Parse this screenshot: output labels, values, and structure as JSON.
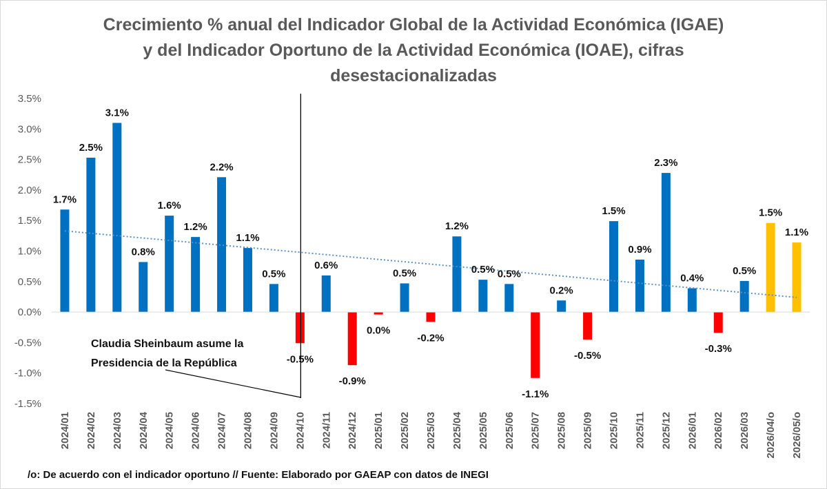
{
  "chart_data": {
    "type": "bar",
    "title_lines": [
      "Crecimiento % anual del Indicador Global de la Actividad Económica (IGAE)",
      "y del Indicador Oportuno de la Actividad Económica (IOAE), cifras",
      "desestacionalizadas"
    ],
    "categories": [
      "2024/01",
      "2024/02",
      "2024/03",
      "2024/04",
      "2024/05",
      "2024/06",
      "2024/07",
      "2024/08",
      "2024/09",
      "2024/10",
      "2024/11",
      "2024/12",
      "2025/01",
      "2025/02",
      "2025/03",
      "2025/04",
      "2025/05",
      "2025/06",
      "2025/07",
      "2025/08",
      "2025/09",
      "2025/10",
      "2025/11",
      "2025/12",
      "2026/01",
      "2026/02",
      "2026/03",
      "2026/04/o",
      "2026/05/o"
    ],
    "values": [
      1.68,
      2.53,
      3.1,
      0.82,
      1.58,
      1.23,
      2.21,
      1.05,
      0.46,
      -0.51,
      0.6,
      -0.87,
      -0.04,
      0.47,
      -0.16,
      1.24,
      0.53,
      0.46,
      -1.08,
      0.19,
      -0.45,
      1.49,
      0.86,
      2.28,
      0.39,
      -0.34,
      0.51,
      1.46,
      1.14
    ],
    "data_labels": [
      "1.7%",
      "2.5%",
      "3.1%",
      "0.8%",
      "1.6%",
      "1.2%",
      "2.2%",
      "1.1%",
      "0.5%",
      "-0.5%",
      "0.6%",
      "-0.9%",
      "0.0%",
      "0.5%",
      "-0.2%",
      "1.2%",
      "0.5%",
      "0.5%",
      "-1.1%",
      "0.2%",
      "-0.5%",
      "1.5%",
      "0.9%",
      "2.3%",
      "0.4%",
      "-0.3%",
      "0.5%",
      "1.5%",
      "1.1%"
    ],
    "ylim": [
      -1.5,
      3.5
    ],
    "yticks": [
      3.5,
      3.0,
      2.5,
      2.0,
      1.5,
      1.0,
      0.5,
      0.0,
      -0.5,
      -1.0,
      -1.5
    ],
    "ytick_labels": [
      "3.5%",
      "3.0%",
      "2.5%",
      "2.0%",
      "1.5%",
      "1.0%",
      "0.5%",
      "0.0%",
      "-0.5%",
      "-1.0%",
      "-1.5%"
    ],
    "colors": {
      "positive": "#0070c0",
      "negative": "#ff0000",
      "oportuno": "#ffc000",
      "trendline": "#5b8fc7"
    },
    "oportuno_categories": [
      "2026/04/o",
      "2026/05/o"
    ],
    "trendline": {
      "type": "linear",
      "start": 1.33,
      "end": 0.24
    },
    "annotation": {
      "lines": [
        "Claudia Sheinbaum asume la",
        "Presidencia de la República"
      ],
      "category": "2024/10"
    },
    "grid": false,
    "legend": "none",
    "footnote": "/o: De acuerdo con el indicador oportuno // Fuente: Elaborado por GAEAP con datos de INEGI"
  }
}
